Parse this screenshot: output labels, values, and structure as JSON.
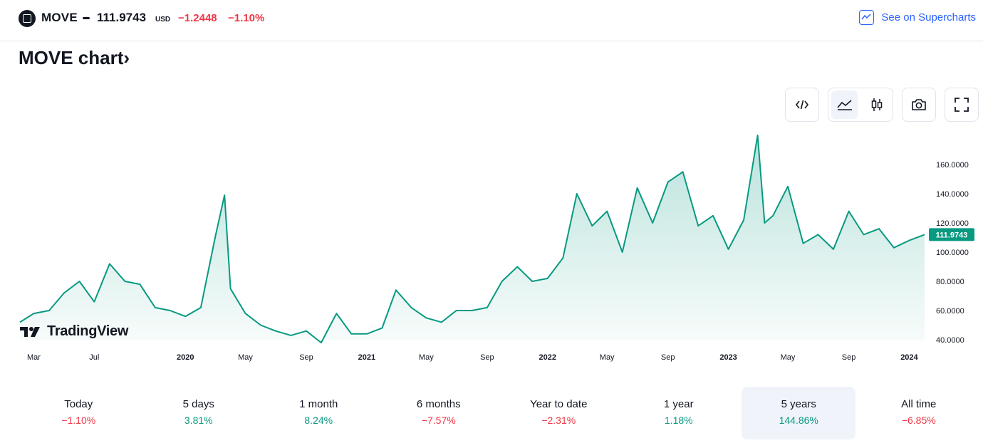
{
  "header": {
    "symbol": "MOVE",
    "price": "111.9743",
    "currency": "USD",
    "change": "−1.2448",
    "change_percent": "−1.10%",
    "supercharts_link": "See on Supercharts",
    "supercharts_icon": "chart-icon"
  },
  "title": "MOVE chart›",
  "toolbar": {
    "embed_icon": "code-icon",
    "area_icon": "area-chart-icon",
    "candles_icon": "candlestick-icon",
    "snapshot_icon": "camera-icon",
    "fullscreen_icon": "fullscreen-icon",
    "active_style": "area"
  },
  "brand": "TradingView",
  "colors": {
    "line": "#089981",
    "negative": "#f23645",
    "positive": "#089981",
    "link": "#2962ff"
  },
  "chart_data": {
    "type": "area",
    "title": "",
    "xlabel": "",
    "ylabel": "",
    "ylim": [
      40,
      180
    ],
    "grid": false,
    "y_ticks": [
      "160.0000",
      "140.0000",
      "120.0000",
      "100.0000",
      "80.0000",
      "60.0000",
      "40.0000"
    ],
    "x_ticks": [
      "Mar",
      "Jul",
      "2020",
      "May",
      "Sep",
      "2021",
      "May",
      "Sep",
      "2022",
      "May",
      "Sep",
      "2023",
      "May",
      "Sep",
      "2024"
    ],
    "last_value_label": "111.9743",
    "series": [
      {
        "x": [
          "2019-02",
          "2019-03",
          "2019-04",
          "2019-05",
          "2019-06",
          "2019-07",
          "2019-08",
          "2019-09",
          "2019-10",
          "2019-11",
          "2019-12",
          "2020-01",
          "2020-02",
          "2020-03",
          "2020-03-20",
          "2020-04",
          "2020-05",
          "2020-06",
          "2020-07",
          "2020-08",
          "2020-09",
          "2020-10",
          "2020-11",
          "2020-12",
          "2021-01",
          "2021-02",
          "2021-03",
          "2021-04",
          "2021-05",
          "2021-06",
          "2021-07",
          "2021-08",
          "2021-09",
          "2021-10",
          "2021-11",
          "2021-12",
          "2022-01",
          "2022-02",
          "2022-03",
          "2022-04",
          "2022-05",
          "2022-06",
          "2022-07",
          "2022-08",
          "2022-09",
          "2022-10",
          "2022-11",
          "2022-12",
          "2023-01",
          "2023-02",
          "2023-03",
          "2023-03-15",
          "2023-04",
          "2023-05",
          "2023-06",
          "2023-07",
          "2023-08",
          "2023-09",
          "2023-10",
          "2023-11",
          "2023-12",
          "2024-01",
          "2024-02"
        ],
        "values": [
          52,
          58,
          60,
          72,
          80,
          66,
          92,
          80,
          78,
          62,
          60,
          56,
          62,
          110,
          139,
          75,
          58,
          50,
          46,
          43,
          46,
          38,
          58,
          44,
          44,
          48,
          74,
          62,
          55,
          52,
          60,
          60,
          62,
          80,
          90,
          80,
          82,
          96,
          140,
          118,
          128,
          100,
          144,
          120,
          148,
          155,
          118,
          125,
          102,
          122,
          180,
          120,
          125,
          145,
          106,
          112,
          102,
          128,
          112,
          116,
          103,
          108,
          112
        ]
      }
    ]
  },
  "periods": [
    {
      "label": "Today",
      "value": "−1.10%",
      "sign": "neg"
    },
    {
      "label": "5 days",
      "value": "3.81%",
      "sign": "pos"
    },
    {
      "label": "1 month",
      "value": "8.24%",
      "sign": "pos"
    },
    {
      "label": "6 months",
      "value": "−7.57%",
      "sign": "neg"
    },
    {
      "label": "Year to date",
      "value": "−2.31%",
      "sign": "neg"
    },
    {
      "label": "1 year",
      "value": "1.18%",
      "sign": "pos"
    },
    {
      "label": "5 years",
      "value": "144.86%",
      "sign": "pos"
    },
    {
      "label": "All time",
      "value": "−6.85%",
      "sign": "neg"
    }
  ],
  "active_period": "5 years"
}
